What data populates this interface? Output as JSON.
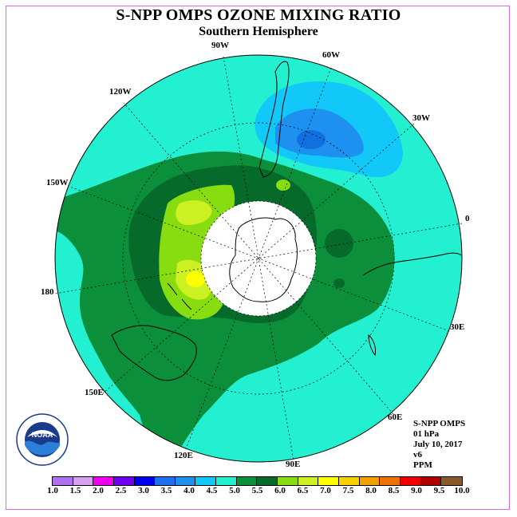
{
  "header": {
    "title": "S-NPP OMPS OZONE MIXING RATIO",
    "subtitle": "Southern Hemisphere"
  },
  "map": {
    "longitude_labels": [
      "90W",
      "60W",
      "30W",
      "0",
      "30E",
      "60E",
      "90E",
      "120E",
      "150E",
      "180",
      "150W",
      "120W"
    ],
    "colors": {
      "ocean_fill_4_5_5_0": "#22f0d0",
      "fill_5_0_5_5": "#0b8f3a",
      "fill_5_5_6_0": "#066b2a",
      "fill_6_0_6_5": "#88dd11",
      "fill_6_5_7_0": "#ccf022",
      "fill_7_0_7_5": "#ffff00",
      "fill_3_5_4_0": "#12c8f8",
      "fill_3_0_3_5": "#1e90f0",
      "fill_2_5_3_0": "#1070e0",
      "polar_gap": "#ffffff"
    }
  },
  "info": {
    "instrument": "S-NPP OMPS",
    "level": "01 hPa",
    "date": "July 10, 2017",
    "version": "v6",
    "units": "PPM"
  },
  "colorbar": {
    "colors": [
      "#b070f0",
      "#d8a0f0",
      "#f000f0",
      "#7000f0",
      "#0000f0",
      "#1e70f0",
      "#1e90f0",
      "#12c8f8",
      "#22f0d0",
      "#0b8f3a",
      "#066b2a",
      "#88dd11",
      "#ccf022",
      "#ffff00",
      "#f8d000",
      "#f0a000",
      "#f07000",
      "#f00000",
      "#b00000",
      "#8b5a2b"
    ],
    "ticks": [
      "1.0",
      "1.5",
      "2.0",
      "2.5",
      "3.0",
      "3.5",
      "4.0",
      "4.5",
      "5.0",
      "5.5",
      "6.0",
      "6.5",
      "7.0",
      "7.5",
      "8.0",
      "8.5",
      "9.0",
      "9.5",
      "10.0"
    ]
  },
  "logo": {
    "text": "NOAA",
    "ring_text": "NATIONAL OCEANIC AND ATMOSPHERIC ADMINISTRATION",
    "ring_text_bottom": "U.S. DEPARTMENT OF COMMERCE"
  }
}
